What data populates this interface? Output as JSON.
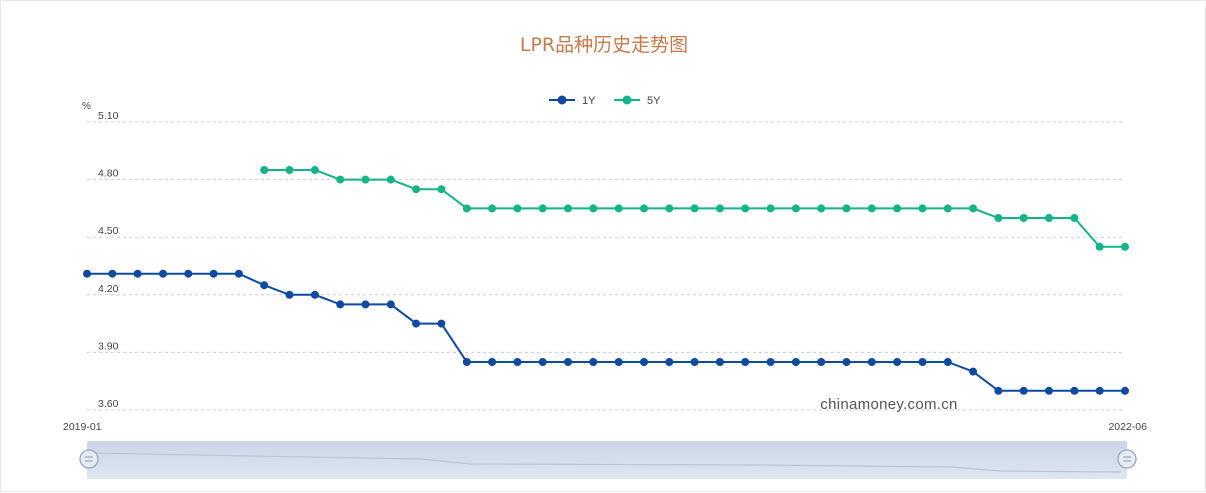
{
  "chart_data": {
    "type": "line",
    "title": "LPR品种历史走势图",
    "unit_label": "%",
    "xlabel": "",
    "ylabel": "",
    "y_ticks": [
      "5.10",
      "4.80",
      "4.50",
      "4.20",
      "3.90",
      "3.60"
    ],
    "ylim": [
      3.6,
      5.1
    ],
    "legend": {
      "position": "top-center"
    },
    "grid": true,
    "x_start_label": "2019-01",
    "x_end_label": "2022-06",
    "watermark": "chinamoney.com.cn",
    "series": [
      {
        "name": "1Y",
        "color": "#0d4aa0",
        "values": [
          4.31,
          4.31,
          4.31,
          4.31,
          4.31,
          4.31,
          4.31,
          4.25,
          4.2,
          4.2,
          4.15,
          4.15,
          4.15,
          4.05,
          4.05,
          3.85,
          3.85,
          3.85,
          3.85,
          3.85,
          3.85,
          3.85,
          3.85,
          3.85,
          3.85,
          3.85,
          3.85,
          3.85,
          3.85,
          3.85,
          3.85,
          3.85,
          3.85,
          3.85,
          3.85,
          3.8,
          3.7,
          3.7,
          3.7,
          3.7,
          3.7,
          3.7
        ]
      },
      {
        "name": "5Y",
        "color": "#14b38a",
        "values": [
          null,
          null,
          null,
          null,
          null,
          null,
          null,
          4.85,
          4.85,
          4.85,
          4.8,
          4.8,
          4.8,
          4.75,
          4.75,
          4.65,
          4.65,
          4.65,
          4.65,
          4.65,
          4.65,
          4.65,
          4.65,
          4.65,
          4.65,
          4.65,
          4.65,
          4.65,
          4.65,
          4.65,
          4.65,
          4.65,
          4.65,
          4.65,
          4.65,
          4.65,
          4.6,
          4.6,
          4.6,
          4.6,
          4.45,
          4.45
        ]
      }
    ]
  },
  "data_zoom": {
    "start_percent": 0,
    "end_percent": 100
  }
}
